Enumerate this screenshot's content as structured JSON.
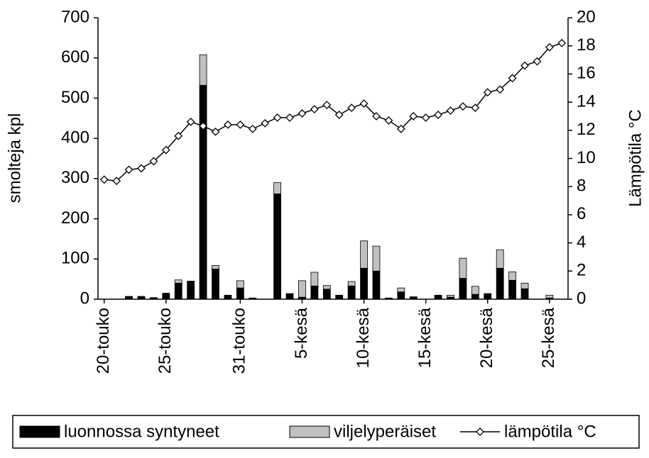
{
  "chart_data": {
    "type": "bar-line",
    "categories": [
      "20-touko",
      null,
      null,
      null,
      null,
      "25-touko",
      null,
      null,
      null,
      null,
      null,
      "31-touko",
      null,
      null,
      null,
      null,
      "5-kesä",
      null,
      null,
      null,
      null,
      "10-kesä",
      null,
      null,
      null,
      null,
      "15-kesä",
      null,
      null,
      null,
      null,
      "20-kesä",
      null,
      null,
      null,
      null,
      "25-kesä",
      null
    ],
    "y_label": "smolteja kpl",
    "y2_label": "Lämpötila °C",
    "ylim": [
      0,
      700
    ],
    "yticks": [
      0,
      100,
      200,
      300,
      400,
      500,
      600,
      700
    ],
    "y2lim": [
      0,
      20
    ],
    "y2ticks": [
      0,
      2,
      4,
      6,
      8,
      10,
      12,
      14,
      16,
      18,
      20
    ],
    "series": [
      {
        "name": "luonnossa syntyneet",
        "type": "bar",
        "color": "#000000",
        "values": [
          0,
          0,
          6,
          7,
          4,
          15,
          40,
          45,
          532,
          75,
          10,
          28,
          3,
          0,
          262,
          14,
          5,
          33,
          25,
          10,
          33,
          77,
          70,
          3,
          18,
          6,
          0,
          10,
          5,
          52,
          12,
          14,
          77,
          47,
          26,
          0,
          3,
          0
        ]
      },
      {
        "name": "viljelyperäiset",
        "type": "bar",
        "color": "#c0c0c0",
        "values": [
          0,
          0,
          1,
          0,
          0,
          0,
          8,
          0,
          76,
          9,
          0,
          18,
          0,
          0,
          28,
          0,
          41,
          34,
          9,
          0,
          11,
          68,
          62,
          0,
          10,
          0,
          0,
          0,
          5,
          50,
          20,
          0,
          46,
          21,
          14,
          0,
          7,
          0
        ]
      },
      {
        "name": "lämpötila °C",
        "type": "line",
        "axis": "y2",
        "color": "#000000",
        "values": [
          8.5,
          8.4,
          9.2,
          9.3,
          9.8,
          10.6,
          11.6,
          12.6,
          12.3,
          11.9,
          12.4,
          12.4,
          12.1,
          12.5,
          12.9,
          12.9,
          13.2,
          13.5,
          13.8,
          13.1,
          13.6,
          13.9,
          13.0,
          12.7,
          12.1,
          13.0,
          12.9,
          13.1,
          13.4,
          13.7,
          13.6,
          14.7,
          14.9,
          15.7,
          16.6,
          16.9,
          17.9,
          18.2
        ]
      }
    ]
  }
}
